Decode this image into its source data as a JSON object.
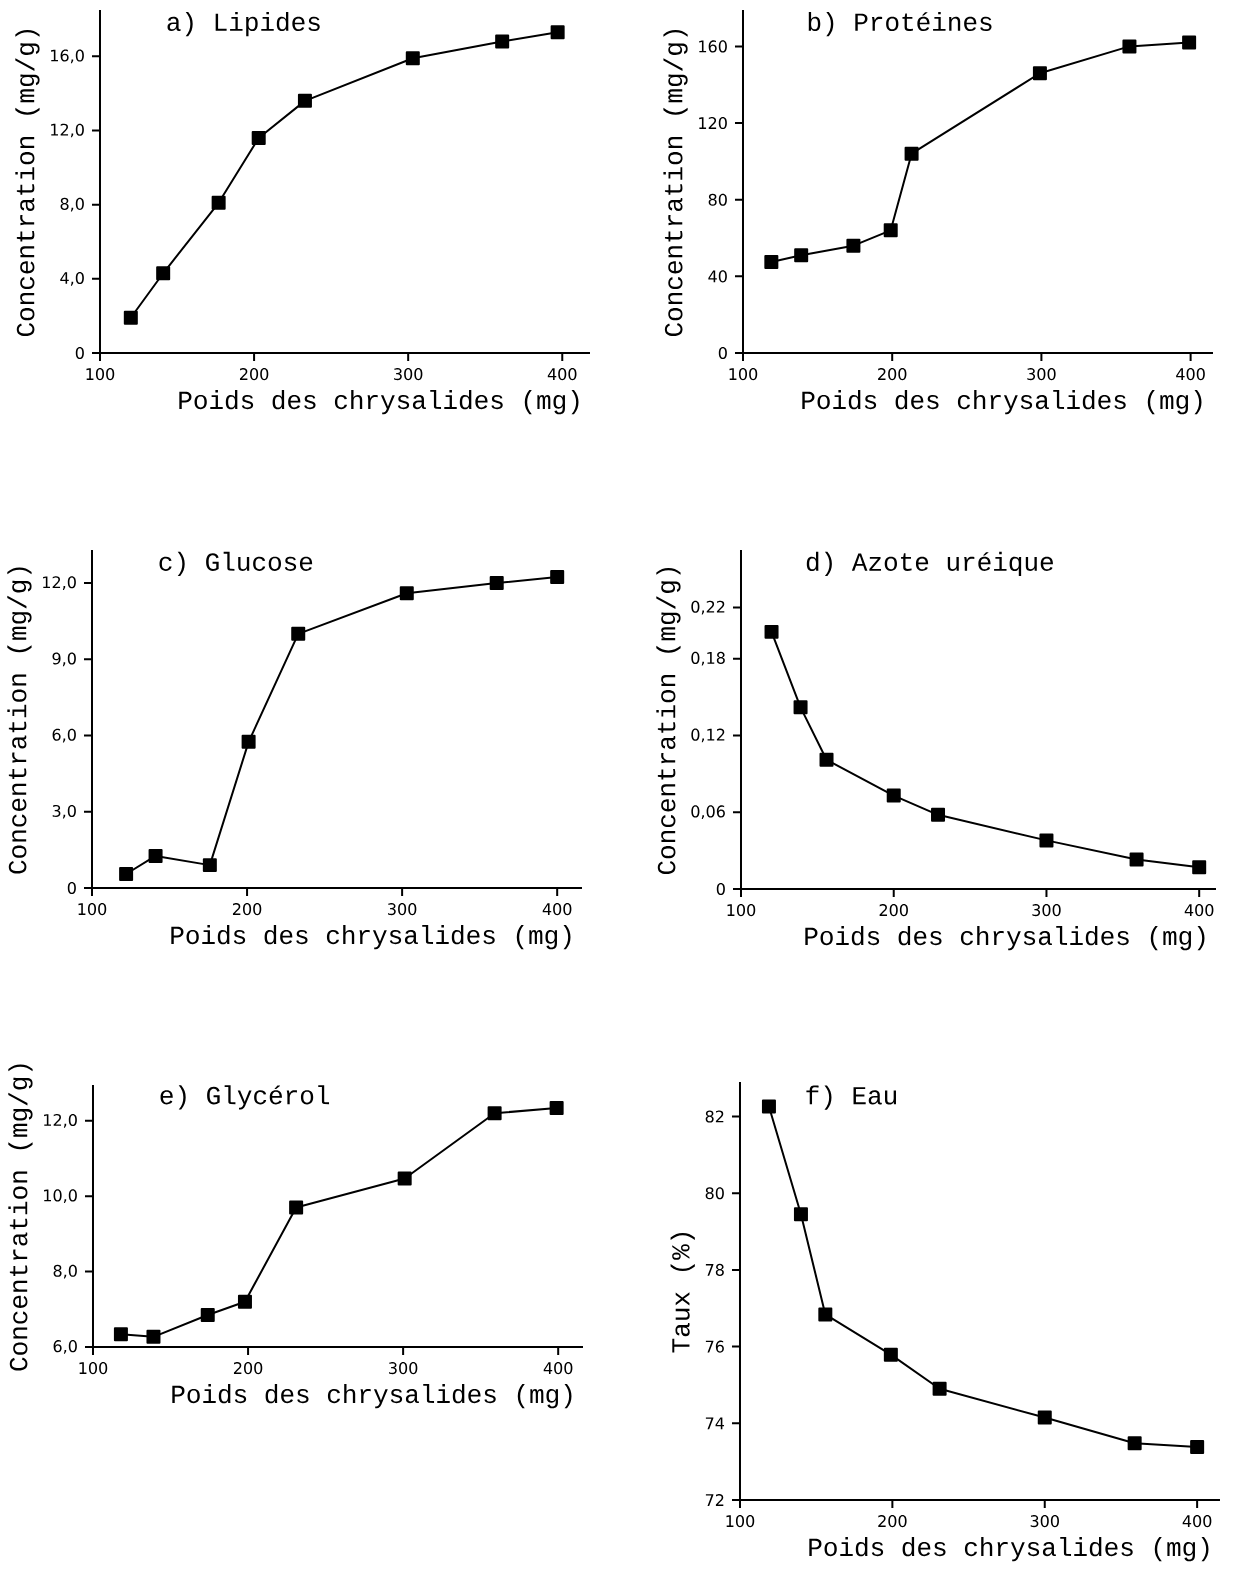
{
  "chart_data": [
    {
      "type": "line",
      "title": "a) Lipides",
      "xlabel": "Poids des chrysalides (mg)",
      "ylabel": "Concentration (mg/g)",
      "color": "#000000",
      "marker": "square",
      "line_style": "solid",
      "x": [
        120,
        141,
        177,
        203,
        233,
        303,
        361,
        397
      ],
      "values": [
        1.9,
        4.3,
        8.1,
        11.6,
        13.6,
        15.9,
        16.8,
        17.3
      ],
      "xlim": [
        100,
        418
      ],
      "ylim": [
        0,
        18.5
      ],
      "xticks": [
        100,
        200,
        300,
        400
      ],
      "yticks": [
        0,
        {
          "value": 4,
          "label": "4,0"
        },
        {
          "value": 8,
          "label": "8,0"
        },
        {
          "value": 12,
          "label": "12,0"
        },
        {
          "value": 16,
          "label": "16,0"
        }
      ]
    },
    {
      "type": "line",
      "title": "b) Protéines",
      "xlabel": "Poids des chrysalides (mg)",
      "ylabel": "Concentration (mg/g)",
      "color": "#000000",
      "marker": "square",
      "line_style": "solid",
      "x": [
        119,
        139,
        174,
        199,
        213,
        299,
        359,
        399
      ],
      "values": [
        47.5,
        51,
        56,
        64,
        104,
        146,
        160,
        162
      ],
      "xlim": [
        100,
        415
      ],
      "ylim": [
        0,
        179
      ],
      "xticks": [
        100,
        200,
        300,
        400
      ],
      "yticks": [
        0,
        40,
        80,
        120,
        160
      ]
    },
    {
      "type": "line",
      "title": "c) Glucose",
      "xlabel": "Poids des chrysalides (mg)",
      "ylabel": "Concentration (mg/g)",
      "color": "#000000",
      "marker": "square",
      "line_style": "solid",
      "x": [
        122,
        141,
        176,
        201,
        233,
        303,
        361,
        400
      ],
      "values": [
        0.55,
        1.26,
        0.9,
        5.75,
        10.0,
        11.6,
        12.0,
        12.24
      ],
      "xlim": [
        100,
        416
      ],
      "ylim": [
        0,
        13.3
      ],
      "xticks": [
        100,
        200,
        300,
        400
      ],
      "yticks": [
        0,
        {
          "value": 3,
          "label": "3,0"
        },
        {
          "value": 6,
          "label": "6,0"
        },
        {
          "value": 9,
          "label": "9,0"
        },
        {
          "value": 12,
          "label": "12,0"
        }
      ]
    },
    {
      "type": "line",
      "title": "d) Azote uréique",
      "xlabel": "Poids des chrysalides (mg)",
      "ylabel": "Concentration (mg/g)",
      "color": "#000000",
      "marker": "square",
      "line_style": "solid",
      "x": [
        120,
        139,
        156,
        200,
        229,
        300,
        359,
        400
      ],
      "values": [
        0.201,
        0.142,
        0.101,
        0.073,
        0.058,
        0.038,
        0.023,
        0.017
      ],
      "xlim": [
        100,
        411
      ],
      "ylim": [
        0,
        0.265
      ],
      "xticks": [
        100,
        200,
        300,
        400
      ],
      "yticks": [
        0,
        {
          "value": 0.06,
          "label": "0,06"
        },
        {
          "value": 0.12,
          "label": "0,12"
        },
        {
          "value": 0.18,
          "label": "0,18"
        },
        {
          "value": 0.22,
          "label": "0,22"
        }
      ]
    },
    {
      "type": "line",
      "title": "e) Glycérol",
      "xlabel": "Poids des chrysalides (mg)",
      "ylabel": "Concentration (mg/g)",
      "color": "#000000",
      "marker": "square",
      "line_style": "solid",
      "x": [
        118,
        139,
        174,
        198,
        231,
        301,
        359,
        399
      ],
      "values": [
        6.34,
        6.27,
        6.85,
        7.2,
        9.7,
        10.47,
        12.2,
        12.34
      ],
      "xlim": [
        100,
        416
      ],
      "ylim": [
        6,
        12.95
      ],
      "xticks": [
        100,
        200,
        300,
        400
      ],
      "yticks": [
        {
          "value": 6,
          "label": "6,0"
        },
        {
          "value": 8,
          "label": "8,0"
        },
        {
          "value": 10,
          "label": "10,0"
        },
        {
          "value": 12,
          "label": "12,0"
        }
      ]
    },
    {
      "type": "line",
      "title": "f) Eau",
      "xlabel": "Poids des chrysalides (mg)",
      "ylabel": "Taux (%)",
      "color": "#000000",
      "marker": "square",
      "line_style": "solid",
      "x": [
        119,
        140,
        156,
        199,
        231,
        300,
        359,
        400
      ],
      "values": [
        82.26,
        79.45,
        76.84,
        75.79,
        74.9,
        74.15,
        73.48,
        73.38
      ],
      "xlim": [
        100,
        415
      ],
      "ylim": [
        72,
        82.9
      ],
      "xticks": [
        100,
        200,
        300,
        400
      ],
      "yticks": [
        72,
        74,
        76,
        78,
        80,
        82
      ]
    }
  ]
}
